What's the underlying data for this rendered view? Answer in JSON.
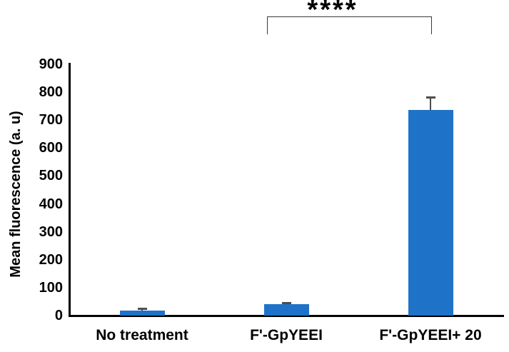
{
  "chart_data": {
    "type": "bar",
    "title": "",
    "categories": [
      "No treatment",
      "F'-GpYEEI",
      "F'-GpYEEI+ 20"
    ],
    "values": [
      18,
      40,
      737
    ],
    "errors_plus": [
      8,
      7,
      45
    ],
    "xlabel": "",
    "ylabel": "Mean fluorescence (a. u)",
    "ylim": [
      0,
      900
    ],
    "yticks": [
      0,
      100,
      200,
      300,
      400,
      500,
      600,
      700,
      800,
      900
    ],
    "grid": false,
    "legend": false,
    "bar_color": "#1E73C8",
    "error_bar_color": "#4d4d4d",
    "axis_color": "#000000",
    "annotation": {
      "label": "****",
      "between": [
        "F'-GpYEEI",
        "F'-GpYEEI+ 20"
      ]
    }
  }
}
